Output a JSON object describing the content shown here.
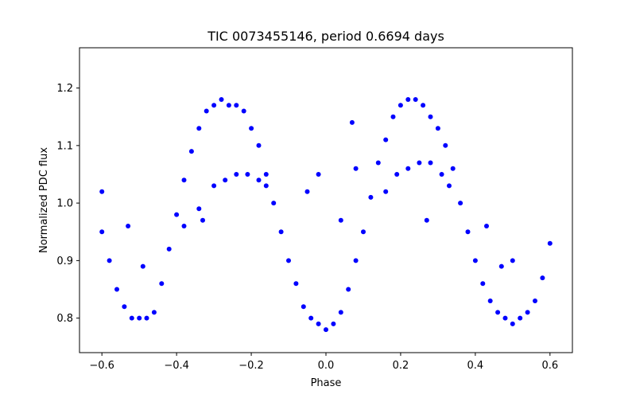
{
  "chart_data": {
    "type": "scatter",
    "title": "TIC 0073455146, period 0.6694 days",
    "xlabel": "Phase",
    "ylabel": "Normalized PDC flux",
    "xlim": [
      -0.66,
      0.66
    ],
    "ylim": [
      0.74,
      1.27
    ],
    "xticks": [
      -0.6,
      -0.4,
      -0.2,
      0.0,
      0.2,
      0.4,
      0.6
    ],
    "xtick_labels": [
      "−0.6",
      "−0.4",
      "−0.2",
      "0.0",
      "0.2",
      "0.4",
      "0.6"
    ],
    "yticks": [
      0.8,
      0.9,
      1.0,
      1.1,
      1.2
    ],
    "ytick_labels": [
      "0.8",
      "0.9",
      "1.0",
      "1.1",
      "1.2"
    ],
    "grid": false,
    "marker_color": "#0000ff",
    "series": [
      {
        "x": [
          -0.6,
          -0.58,
          -0.56,
          -0.54,
          -0.52,
          -0.5,
          -0.48,
          -0.46,
          -0.44,
          -0.42,
          -0.4,
          -0.38,
          -0.36,
          -0.34,
          -0.32,
          -0.3,
          -0.28,
          -0.26,
          -0.24,
          -0.22,
          -0.2,
          -0.18,
          -0.16,
          -0.14,
          -0.12,
          -0.1,
          -0.08,
          -0.06,
          -0.04,
          -0.02,
          0.0,
          0.02,
          0.04,
          0.06,
          0.08,
          0.1,
          0.12,
          0.14,
          0.16,
          0.18,
          0.2,
          0.22,
          0.24,
          0.26,
          0.28,
          0.3,
          0.32,
          0.34,
          0.36,
          0.38,
          0.4,
          0.42,
          0.44,
          0.46,
          0.48,
          0.5,
          0.52,
          0.54,
          0.56,
          0.58,
          0.6
        ],
        "y": [
          0.95,
          0.9,
          0.85,
          0.82,
          0.8,
          0.8,
          0.8,
          0.81,
          0.86,
          0.92,
          0.98,
          1.04,
          1.09,
          1.13,
          1.16,
          1.17,
          1.18,
          1.17,
          1.17,
          1.16,
          1.13,
          1.1,
          1.05,
          1.0,
          0.95,
          0.9,
          0.86,
          0.82,
          0.8,
          0.79,
          0.78,
          0.79,
          0.81,
          0.85,
          0.9,
          0.95,
          1.01,
          1.07,
          1.11,
          1.15,
          1.17,
          1.18,
          1.18,
          1.17,
          1.15,
          1.13,
          1.1,
          1.06,
          1.0,
          0.95,
          0.9,
          0.86,
          0.83,
          0.81,
          0.8,
          0.79,
          0.8,
          0.81,
          0.83,
          0.87,
          0.93
        ]
      },
      {
        "x": [
          -0.34,
          -0.3,
          -0.27,
          -0.24,
          -0.21,
          -0.18,
          -0.16,
          0.16,
          0.19,
          0.22,
          0.25,
          0.28,
          0.31,
          0.33
        ],
        "y": [
          0.99,
          1.03,
          1.04,
          1.05,
          1.05,
          1.04,
          1.03,
          1.02,
          1.05,
          1.06,
          1.07,
          1.07,
          1.05,
          1.03
        ]
      },
      {
        "x": [
          -0.6,
          -0.53,
          -0.49,
          -0.38,
          -0.33,
          -0.05,
          -0.02,
          0.04,
          0.07,
          0.08,
          0.27,
          0.43,
          0.47,
          0.5
        ],
        "y": [
          1.02,
          0.96,
          0.89,
          0.96,
          0.97,
          1.02,
          1.05,
          0.97,
          1.14,
          1.06,
          0.97,
          0.96,
          0.89,
          0.9
        ]
      }
    ]
  }
}
